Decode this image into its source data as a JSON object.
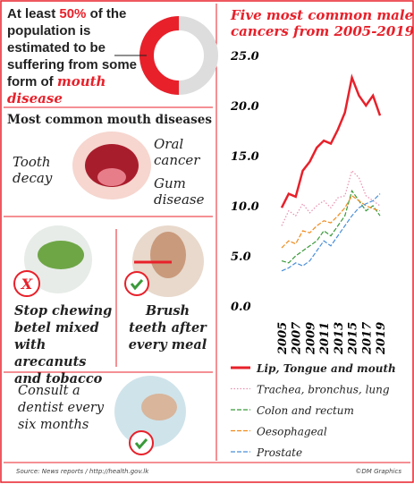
{
  "intro": {
    "lead": "At least",
    "highlight": "50%",
    "middle": "of the population is estimated to be suffering from some form of",
    "emphasis": "mouth disease"
  },
  "diseases": {
    "heading": "Most common mouth diseases",
    "left": "Tooth decay",
    "top_right": "Oral cancer",
    "bottom_right": "Gum disease"
  },
  "tips": [
    {
      "text": "Stop chewing betel mixed with arecanuts and tobacco",
      "icon": "X"
    },
    {
      "text": "Brush teeth after every meal"
    },
    {
      "text": "Consult a dentist every six months"
    }
  ],
  "footer": {
    "source": "Source: News reports / http://health.gov.lk",
    "credit": "©DM Graphics"
  },
  "chart_data": {
    "type": "line",
    "title": "Five most common male cancers from 2005-2019",
    "x": [
      2005,
      2006,
      2007,
      2008,
      2009,
      2010,
      2011,
      2012,
      2013,
      2014,
      2015,
      2016,
      2017,
      2018,
      2019
    ],
    "xticks": [
      2005,
      2007,
      2009,
      2011,
      2013,
      2015,
      2017,
      2019
    ],
    "xlim": [
      2005,
      2019
    ],
    "ylim": [
      0,
      25
    ],
    "yticks": [
      {
        "value": 0,
        "label": "0.0"
      },
      {
        "value": 5,
        "label": "5.0"
      },
      {
        "value": 10,
        "label": "10.0"
      },
      {
        "value": 15,
        "label": "15.0"
      },
      {
        "value": 20,
        "label": "20.0"
      },
      {
        "value": 25,
        "label": "25.0"
      }
    ],
    "grid": false,
    "series": [
      {
        "name": "Lip, Tongue and mouth",
        "color": "#e8202a",
        "line_style": "solid",
        "values": [
          9.8,
          11.2,
          10.9,
          13.5,
          14.4,
          15.8,
          16.5,
          16.2,
          17.6,
          19.3,
          22.8,
          21.0,
          20.0,
          21.0,
          19.0
        ]
      },
      {
        "name": "Trachea, bronchus, lung",
        "color": "#e88fb0",
        "line_style": "dotted",
        "values": [
          8.0,
          9.5,
          9.0,
          10.2,
          9.3,
          10.0,
          10.5,
          9.8,
          10.8,
          11.0,
          13.5,
          12.8,
          11.0,
          10.5,
          10.0
        ]
      },
      {
        "name": "Colon and rectum",
        "color": "#3a9a3a",
        "line_style": "dashed",
        "values": [
          4.5,
          4.3,
          5.0,
          5.5,
          6.0,
          6.5,
          7.5,
          7.0,
          8.0,
          9.0,
          11.5,
          10.5,
          9.5,
          10.0,
          9.0
        ]
      },
      {
        "name": "Oesophageal",
        "color": "#f08a1c",
        "line_style": "dashed",
        "values": [
          5.8,
          6.5,
          6.2,
          7.5,
          7.3,
          8.0,
          8.5,
          8.3,
          9.0,
          9.8,
          11.0,
          10.5,
          10.0,
          9.7,
          9.5
        ]
      },
      {
        "name": "Prostate",
        "color": "#4a8fd8",
        "line_style": "dashed",
        "values": [
          3.5,
          3.8,
          4.3,
          4.0,
          4.5,
          5.5,
          6.5,
          6.0,
          7.0,
          8.0,
          9.0,
          9.8,
          10.2,
          10.5,
          11.2
        ]
      }
    ]
  }
}
